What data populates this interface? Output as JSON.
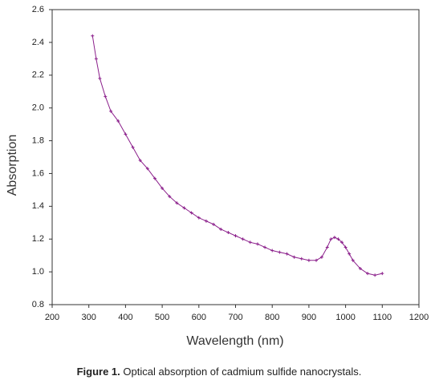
{
  "chart_data": {
    "type": "line",
    "x_label": "Wavelength (nm)",
    "y_label": "Absorption",
    "caption_label": "Figure 1.",
    "caption": "Optical absorption of cadmium sulfide nanocrystals.",
    "x": [
      310,
      320,
      330,
      345,
      360,
      380,
      400,
      420,
      440,
      460,
      480,
      500,
      520,
      540,
      560,
      580,
      600,
      620,
      640,
      660,
      680,
      700,
      720,
      740,
      760,
      780,
      800,
      820,
      840,
      860,
      880,
      900,
      920,
      935,
      950,
      960,
      970,
      980,
      990,
      1000,
      1010,
      1020,
      1040,
      1060,
      1080,
      1100
    ],
    "series": [
      {
        "name": "Absorption",
        "color": "#8b1f8b",
        "values": [
          2.44,
          2.3,
          2.18,
          2.07,
          1.98,
          1.92,
          1.84,
          1.76,
          1.68,
          1.63,
          1.57,
          1.51,
          1.46,
          1.42,
          1.39,
          1.36,
          1.33,
          1.31,
          1.29,
          1.26,
          1.24,
          1.22,
          1.2,
          1.18,
          1.17,
          1.15,
          1.13,
          1.12,
          1.11,
          1.09,
          1.08,
          1.07,
          1.07,
          1.09,
          1.15,
          1.2,
          1.21,
          1.2,
          1.18,
          1.15,
          1.11,
          1.07,
          1.02,
          0.99,
          0.98,
          0.99
        ]
      }
    ],
    "xlim": [
      200,
      1200
    ],
    "xticks": [
      200,
      300,
      400,
      500,
      600,
      700,
      800,
      900,
      1000,
      1100,
      1200
    ],
    "ylim": [
      0.8,
      2.6
    ],
    "yticks": [
      {
        "value": 0.8,
        "label": "0.8"
      },
      {
        "value": 1,
        "label": "1.0"
      },
      1.2,
      1.4,
      1.6,
      1.8,
      {
        "value": 2,
        "label": "2.0"
      },
      2.2,
      2.4,
      2.6
    ]
  }
}
